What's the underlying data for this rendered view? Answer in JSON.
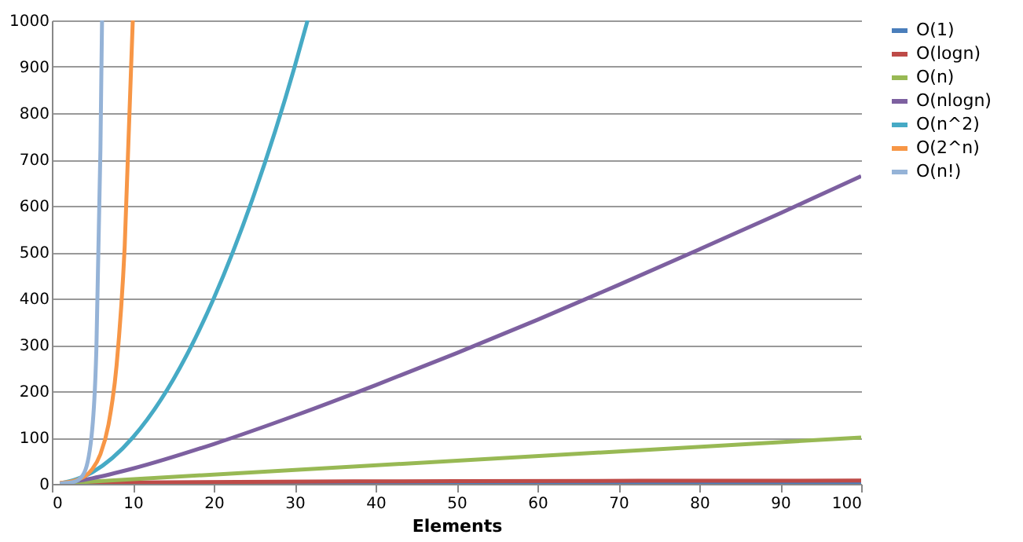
{
  "chart_data": {
    "type": "line",
    "xlabel": "Elements",
    "xlim": [
      0,
      100
    ],
    "ylim": [
      0,
      1000
    ],
    "xticks": [
      0,
      10,
      20,
      30,
      40,
      50,
      60,
      70,
      80,
      90,
      100
    ],
    "yticks": [
      0,
      100,
      200,
      300,
      400,
      500,
      600,
      700,
      800,
      900,
      1000
    ],
    "grid": "y",
    "legend": "right",
    "marker": "none",
    "line_style": "solid",
    "series": [
      {
        "name": "O(1)",
        "color": "#4a7ebb",
        "x": [
          1,
          100
        ],
        "values": [
          1,
          1
        ]
      },
      {
        "name": "O(logn)",
        "color": "#be4b48",
        "x": [
          1,
          10,
          50,
          100
        ],
        "values": [
          0,
          3,
          6,
          7
        ]
      },
      {
        "name": "O(n)",
        "color": "#98b954",
        "x": [
          1,
          100
        ],
        "values": [
          1,
          100
        ]
      },
      {
        "name": "O(nlogn)",
        "color": "#7d60a0",
        "x": [
          1,
          5,
          10,
          20,
          30,
          40,
          50,
          60,
          70,
          80,
          90,
          100
        ],
        "values": [
          0,
          12,
          33,
          86,
          147,
          213,
          282,
          354,
          429,
          506,
          584,
          664
        ]
      },
      {
        "name": "O(n^2)",
        "color": "#46aac5",
        "x": [
          1,
          5,
          10,
          15,
          20,
          25,
          30,
          31.6
        ],
        "values": [
          1,
          25,
          100,
          225,
          400,
          625,
          900,
          1000
        ]
      },
      {
        "name": "O(2^n)",
        "color": "#f79646",
        "x": [
          1,
          3,
          5,
          6,
          7,
          8,
          9,
          10
        ],
        "values": [
          2,
          8,
          32,
          64,
          128,
          256,
          512,
          1000
        ]
      },
      {
        "name": "O(n!)",
        "color": "#95b3d7",
        "x": [
          1,
          2,
          3,
          4,
          5,
          5.5,
          6,
          6.2
        ],
        "values": [
          1,
          2,
          6,
          24,
          120,
          290,
          720,
          1000
        ]
      }
    ]
  }
}
